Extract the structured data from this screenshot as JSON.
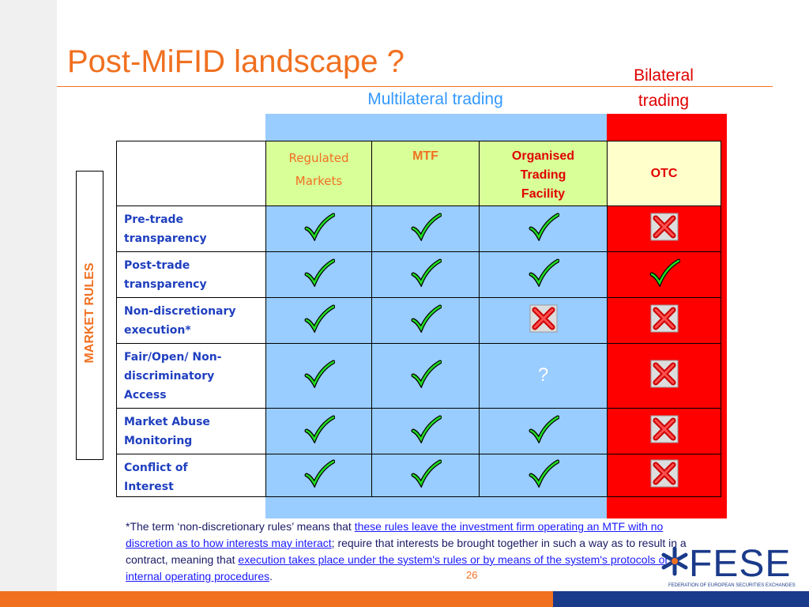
{
  "title": "Post-MiFID landscape ?",
  "multilateral_label": "Multilateral trading",
  "bilateral_label": "Bilateral trading",
  "side_label": "MARKET RULES",
  "table": {
    "header": [
      "Regulated Markets",
      "MTF",
      "Organised Trading Facility",
      "OTC"
    ],
    "rows": [
      "Pre-trade transparency",
      "Post-trade transparency",
      "Non-discretionary execution*",
      "Fair/Open/ Non-discriminatory Access",
      "Market Abuse Monitoring",
      "Conflict of Interest"
    ],
    "question": "?"
  },
  "footnote": [
    "*The term ‘non-discretionary rules’ means that ",
    "these rules leave the investment firm operating an MTF with no discretion as to how interests may interact",
    "; require that interests be brought together in such a way as to result in a contract, meaning that ",
    "execution takes place under the system's rules or by means of the system's protocols or internal operating procedures",
    "."
  ],
  "page_number": "26",
  "logo": {
    "name": "FESE",
    "subtitle": "FEDERATION OF EUROPEAN SECURITIES EXCHANGES"
  }
}
